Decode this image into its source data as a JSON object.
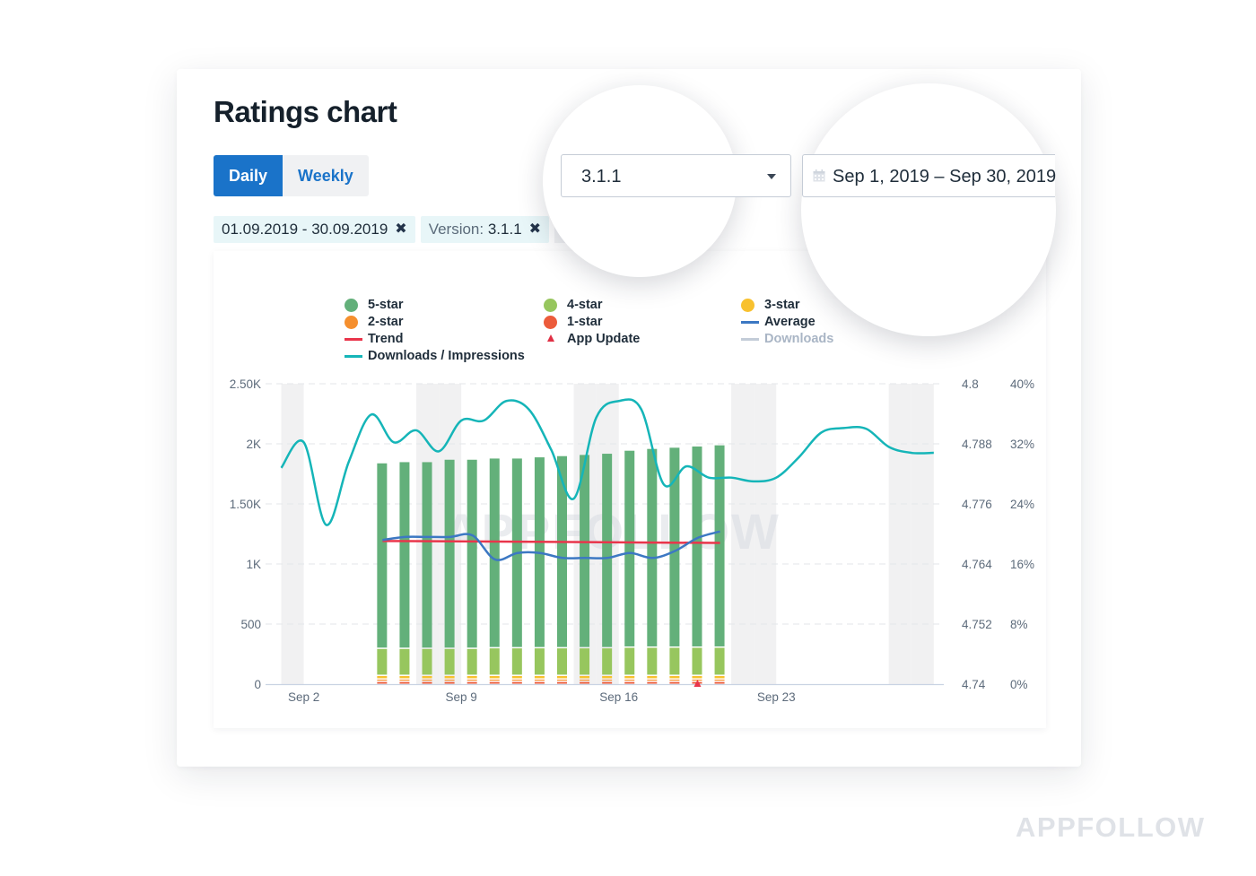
{
  "page": {
    "title": "Ratings chart",
    "watermark": "APPFOLLOW"
  },
  "toggle": {
    "options": [
      {
        "label": "Daily",
        "active": true
      },
      {
        "label": "Weekly",
        "active": false
      }
    ]
  },
  "filters": {
    "tags": [
      {
        "key": "",
        "value": "01.09.2019 - 30.09.2019",
        "remove_icon": "close-icon"
      },
      {
        "key": "Version: ",
        "value": "3.1.1",
        "remove_icon": "close-icon"
      }
    ],
    "version_select": {
      "value": "3.1.1",
      "icon": "chevron-down-icon"
    },
    "date_range": {
      "value": "Sep 1, 2019 – Sep 30, 2019",
      "icon": "calendar-icon"
    }
  },
  "colors": {
    "accent": "#1a73c9",
    "five_star": "#63b07a",
    "four_star": "#97c65e",
    "three_star": "#f8c12f",
    "two_star": "#f58f2e",
    "one_star": "#ec5b3b",
    "average": "#3c78c3",
    "trend": "#e9354b",
    "downloads": "#a9b5c5",
    "downloads_impressions": "#15b5b8",
    "weekend": "#f1f1f2"
  },
  "chart_data": {
    "type": "bar",
    "title": "Ratings chart",
    "legend_position": "top",
    "legend": [
      {
        "label": "5-star",
        "marker": "dot",
        "color_key": "five_star"
      },
      {
        "label": "4-star",
        "marker": "dot",
        "color_key": "four_star"
      },
      {
        "label": "3-star",
        "marker": "dot",
        "color_key": "three_star"
      },
      {
        "label": "2-star",
        "marker": "dot",
        "color_key": "two_star"
      },
      {
        "label": "1-star",
        "marker": "dot",
        "color_key": "one_star"
      },
      {
        "label": "Average",
        "marker": "line",
        "color_key": "average"
      },
      {
        "label": "Trend",
        "marker": "line",
        "color_key": "trend"
      },
      {
        "label": "App Update",
        "marker": "triangle",
        "color_key": "trend"
      },
      {
        "label": "Downloads",
        "marker": "line",
        "color_key": "downloads",
        "disabled": true
      },
      {
        "label": "Downloads / Impressions",
        "marker": "line",
        "color_key": "downloads_impressions"
      }
    ],
    "x_days": [
      1,
      2,
      3,
      4,
      5,
      6,
      7,
      8,
      9,
      10,
      11,
      12,
      13,
      14,
      15,
      16,
      17,
      18,
      19,
      20,
      21,
      22,
      23,
      24,
      25,
      26,
      27,
      28,
      29,
      30
    ],
    "x_month": "Sep",
    "x_ticks": [
      {
        "day": 2,
        "label": "Sep 2"
      },
      {
        "day": 9,
        "label": "Sep 9"
      },
      {
        "day": 16,
        "label": "Sep 16"
      },
      {
        "day": 23,
        "label": "Sep 23"
      }
    ],
    "weekend_days": [
      1,
      7,
      8,
      14,
      15,
      21,
      22,
      28,
      29
    ],
    "y_left": {
      "range": [
        0,
        2500
      ],
      "ticks": [
        0,
        500,
        1000,
        1500,
        2000,
        2500
      ],
      "tick_labels": [
        "0",
        "500",
        "1K",
        "1.50K",
        "2K",
        "2.50K"
      ]
    },
    "y_rating": {
      "range": [
        4.74,
        4.8
      ],
      "ticks": [
        4.74,
        4.752,
        4.764,
        4.776,
        4.788,
        4.8
      ],
      "tick_labels": [
        "4.74",
        "4.752",
        "4.764",
        "4.776",
        "4.788",
        "4.8"
      ]
    },
    "y_percent": {
      "range": [
        0,
        40
      ],
      "ticks": [
        0,
        8,
        16,
        24,
        32,
        40
      ],
      "tick_labels": [
        "0%",
        "8%",
        "16%",
        "24%",
        "32%",
        "40%"
      ]
    },
    "grid": true,
    "stack_days": [
      5,
      6,
      7,
      8,
      9,
      10,
      11,
      12,
      13,
      14,
      15,
      16,
      17,
      18,
      19,
      20
    ],
    "series": [
      {
        "name": "1-star",
        "axis": "left",
        "values": [
          25,
          25,
          25,
          25,
          25,
          25,
          25,
          25,
          25,
          25,
          25,
          25,
          25,
          25,
          25,
          25
        ]
      },
      {
        "name": "2-star",
        "axis": "left",
        "values": [
          20,
          20,
          20,
          20,
          20,
          20,
          20,
          20,
          20,
          20,
          20,
          20,
          20,
          20,
          20,
          20
        ]
      },
      {
        "name": "3-star",
        "axis": "left",
        "values": [
          30,
          30,
          30,
          30,
          30,
          30,
          30,
          30,
          30,
          30,
          30,
          30,
          30,
          30,
          30,
          30
        ]
      },
      {
        "name": "4-star",
        "axis": "left",
        "values": [
          225,
          225,
          225,
          225,
          225,
          230,
          230,
          230,
          230,
          230,
          230,
          235,
          235,
          235,
          235,
          235
        ]
      },
      {
        "name": "5-star",
        "axis": "left",
        "values": [
          1545,
          1555,
          1555,
          1575,
          1575,
          1580,
          1580,
          1590,
          1600,
          1610,
          1620,
          1640,
          1655,
          1665,
          1675,
          1685
        ]
      }
    ],
    "average": {
      "axis": "rating",
      "days": [
        5,
        6,
        7,
        8,
        9,
        10,
        11,
        12,
        13,
        14,
        15,
        16,
        17,
        18,
        19,
        20
      ],
      "values": [
        4.7688,
        4.7694,
        4.7694,
        4.7694,
        4.7697,
        4.7649,
        4.7662,
        4.7662,
        4.7652,
        4.7652,
        4.7652,
        4.7662,
        4.7652,
        4.7666,
        4.7692,
        4.7705
      ]
    },
    "trend": {
      "axis": "rating",
      "days": [
        5,
        20
      ],
      "values": [
        4.7686,
        4.7682
      ]
    },
    "downloads_impressions": {
      "axis": "percent",
      "days": [
        1,
        2,
        3,
        4,
        5,
        6,
        7,
        8,
        9,
        10,
        11,
        12,
        13,
        14,
        15,
        16,
        17,
        18,
        19,
        20,
        21,
        22,
        23,
        24,
        25,
        26,
        27,
        28,
        29,
        30
      ],
      "values": [
        28.8,
        32.2,
        21.2,
        29.6,
        35.9,
        32.2,
        33.8,
        31.0,
        35.1,
        35.1,
        37.7,
        36.6,
        31.2,
        24.7,
        35.5,
        37.7,
        36.6,
        26.6,
        29.0,
        27.5,
        27.5,
        27.0,
        27.5,
        30.2,
        33.5,
        34.1,
        34.0,
        31.6,
        30.8,
        30.8
      ]
    },
    "app_updates": [
      {
        "day": 19
      }
    ],
    "watermark": "APPFOLLOW"
  }
}
